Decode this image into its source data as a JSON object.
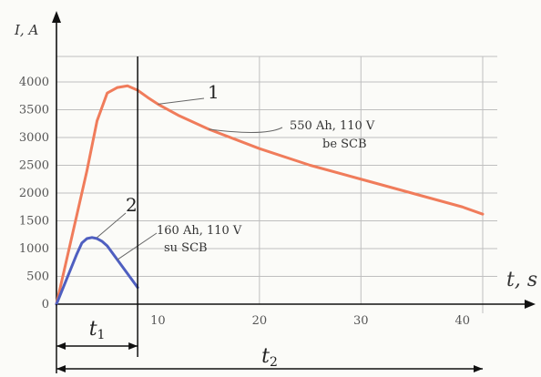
{
  "chart_data": {
    "type": "line",
    "title": "",
    "ylabel": "I, A",
    "xlabel": "t, s",
    "xlim": [
      0,
      42
    ],
    "ylim": [
      0,
      4000
    ],
    "grid": true,
    "y_ticks": [
      "0",
      "500",
      "1000",
      "1500",
      "2000",
      "2500",
      "3000",
      "3500",
      "4000"
    ],
    "x_ticks": [
      "10",
      "20",
      "30",
      "40"
    ],
    "series": [
      {
        "name": "1",
        "color": "#f07c5b",
        "x": [
          0,
          1,
          2,
          3,
          4,
          5,
          6,
          7,
          8,
          9,
          10,
          12,
          15,
          20,
          25,
          30,
          35,
          40,
          42
        ],
        "y": [
          0,
          800,
          1600,
          2400,
          3300,
          3800,
          3900,
          3930,
          3850,
          3720,
          3600,
          3400,
          3150,
          2800,
          2500,
          2250,
          2000,
          1750,
          1620
        ]
      },
      {
        "name": "2",
        "color": "#4f5fc0",
        "x": [
          0,
          1,
          2,
          2.5,
          3,
          3.5,
          4,
          4.5,
          5,
          6,
          7,
          8
        ],
        "y": [
          0,
          450,
          900,
          1100,
          1180,
          1200,
          1180,
          1130,
          1050,
          800,
          550,
          300
        ]
      }
    ],
    "annotations": [
      {
        "series": "1",
        "number": "1",
        "lines": [
          "550 Ah, 110 V",
          "be SCB"
        ]
      },
      {
        "series": "2",
        "number": "2",
        "lines": [
          "160 Ah, 110 V",
          "su SCB"
        ]
      }
    ],
    "dimensions": [
      {
        "label": "t",
        "subscript": "1",
        "from": 0,
        "to": 8
      },
      {
        "label": "t",
        "subscript": "2",
        "from": 0,
        "to": 42
      }
    ]
  }
}
